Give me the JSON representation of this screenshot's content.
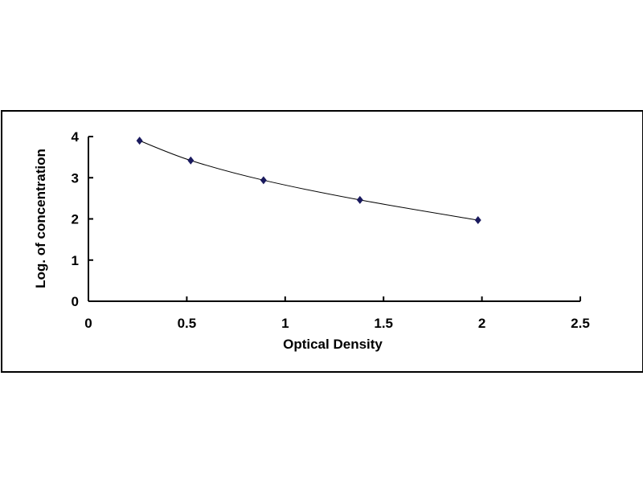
{
  "chart_data": {
    "type": "scatter",
    "xlabel": "Optical Density",
    "ylabel": "Log. of concentration",
    "xlim": [
      0,
      2.5
    ],
    "ylim": [
      0,
      4
    ],
    "x_ticks": [
      "0",
      "0.5",
      "1",
      "1.5",
      "2",
      "2.5"
    ],
    "y_ticks": [
      "0",
      "1",
      "2",
      "3",
      "4"
    ],
    "grid": false,
    "legend": "none",
    "trendline": "smooth curve",
    "marker": "diamond",
    "marker_color": "#1a1a5e",
    "line_color": "#000000",
    "x": [
      0.26,
      0.52,
      0.89,
      1.38,
      1.98
    ],
    "y": [
      3.9,
      3.42,
      2.94,
      2.46,
      1.97
    ]
  }
}
